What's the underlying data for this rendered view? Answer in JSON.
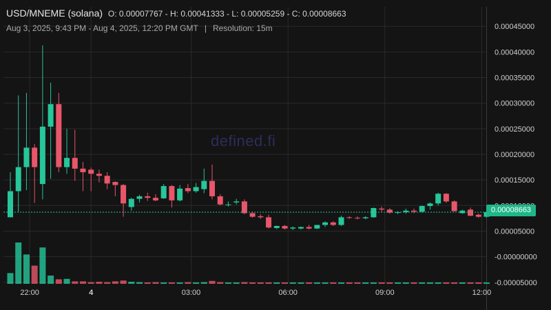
{
  "header": {
    "pair": "USD/MNEME (solana)",
    "ohlc": "O: 0.00007767 - H: 0.00041333 - L: 0.00005259 - C: 0.00008663",
    "range": "Aug 3, 2025, 9:43 PM - Aug 4, 2025, 12:20 PM GMT",
    "separator": "|",
    "resolution": "Resolution: 15m"
  },
  "watermark": "defined.fi",
  "last_price_label": "0.00008663",
  "colors": {
    "up": "#26c79a",
    "down": "#e8566a",
    "background": "#141414",
    "grid": "#2a2a2a",
    "badge": "#1eb688"
  },
  "chart_data": {
    "type": "candlestick",
    "y_ticks": [
      "0.00045000",
      "0.00040000",
      "0.00035000",
      "0.00030000",
      "0.00025000",
      "0.00020000",
      "0.00015000",
      "0.00010000",
      "0.00005000",
      "-0.00000000",
      "-0.00005000"
    ],
    "y_tick_values": [
      0.00045,
      0.0004,
      0.00035,
      0.0003,
      0.00025,
      0.0002,
      0.00015,
      0.0001,
      5e-05,
      0,
      -5e-05
    ],
    "y_range": [
      -5.3e-05,
      0.000488
    ],
    "x_ticks": [
      {
        "label": "22:00",
        "slot": 2.4,
        "bold": false
      },
      {
        "label": "4",
        "slot": 10.0,
        "bold": true
      },
      {
        "label": "03:00",
        "slot": 22.4,
        "bold": false
      },
      {
        "label": "06:00",
        "slot": 34.4,
        "bold": false
      },
      {
        "label": "09:00",
        "slot": 46.4,
        "bold": false
      },
      {
        "label": "12:00",
        "slot": 58.4,
        "bold": false
      }
    ],
    "candles": [
      {
        "o": 7.7e-05,
        "h": 0.000165,
        "l": 7.7e-05,
        "c": 0.000128
      },
      {
        "o": 0.000128,
        "h": 0.000315,
        "l": 8.8e-05,
        "c": 0.000175
      },
      {
        "o": 0.000175,
        "h": 0.00032,
        "l": 0.00013,
        "c": 0.000213
      },
      {
        "o": 0.000213,
        "h": 0.00022,
        "l": 0.000105,
        "c": 0.000175
      },
      {
        "o": 0.000142,
        "h": 0.000413,
        "l": 0.000112,
        "c": 0.000254
      },
      {
        "o": 0.000254,
        "h": 0.00034,
        "l": 0.000152,
        "c": 0.000298
      },
      {
        "o": 0.000298,
        "h": 0.00032,
        "l": 0.000165,
        "c": 0.000175
      },
      {
        "o": 0.000175,
        "h": 0.00025,
        "l": 0.000162,
        "c": 0.000193
      },
      {
        "o": 0.000193,
        "h": 0.000248,
        "l": 0.000148,
        "c": 0.000172
      },
      {
        "o": 0.000172,
        "h": 0.000185,
        "l": 0.000128,
        "c": 0.000165
      },
      {
        "o": 0.00017,
        "h": 0.000174,
        "l": 0.000128,
        "c": 0.000162
      },
      {
        "o": 0.000162,
        "h": 0.00017,
        "l": 0.000145,
        "c": 0.000158
      },
      {
        "o": 0.000158,
        "h": 0.000165,
        "l": 0.000132,
        "c": 0.000143
      },
      {
        "o": 0.000146,
        "h": 0.000147,
        "l": 0.000118,
        "c": 0.00014
      },
      {
        "o": 0.00014,
        "h": 0.000142,
        "l": 7.8e-05,
        "c": 0.000104
      },
      {
        "o": 9.7e-05,
        "h": 0.000115,
        "l": 9e-05,
        "c": 0.000113
      },
      {
        "o": 0.000113,
        "h": 0.000121,
        "l": 0.000106,
        "c": 0.000118
      },
      {
        "o": 0.000118,
        "h": 0.000125,
        "l": 0.000109,
        "c": 0.000115
      },
      {
        "o": 0.000115,
        "h": 0.000122,
        "l": 0.000108,
        "c": 0.00011
      },
      {
        "o": 0.000114,
        "h": 0.000142,
        "l": 0.000113,
        "c": 0.000138
      },
      {
        "o": 0.000138,
        "h": 0.00014,
        "l": 9.6e-05,
        "c": 0.00011
      },
      {
        "o": 0.00011,
        "h": 0.00014,
        "l": 0.000108,
        "c": 0.000133
      },
      {
        "o": 0.000134,
        "h": 0.000142,
        "l": 0.000124,
        "c": 0.000128
      },
      {
        "o": 0.000128,
        "h": 0.000144,
        "l": 0.000125,
        "c": 0.000136
      },
      {
        "o": 0.000132,
        "h": 0.000172,
        "l": 0.000124,
        "c": 0.000148
      },
      {
        "o": 0.000148,
        "h": 0.00018,
        "l": 0.000112,
        "c": 0.000118
      },
      {
        "o": 0.000118,
        "h": 0.000122,
        "l": 0.0001,
        "c": 0.000102
      },
      {
        "o": 0.000102,
        "h": 0.000108,
        "l": 9.8e-05,
        "c": 0.000102
      },
      {
        "o": 0.000106,
        "h": 0.000113,
        "l": 0.000102,
        "c": 0.000108
      },
      {
        "o": 0.000108,
        "h": 0.000112,
        "l": 8.3e-05,
        "c": 8.5e-05
      },
      {
        "o": 8.5e-05,
        "h": 8.8e-05,
        "l": 7.6e-05,
        "c": 7.8e-05
      },
      {
        "o": 7.9e-05,
        "h": 8.3e-05,
        "l": 7.4e-05,
        "c": 7.7e-05
      },
      {
        "o": 7.7e-05,
        "h": 8.2e-05,
        "l": 5.5e-05,
        "c": 5.7e-05
      },
      {
        "o": 5.6e-05,
        "h": 6.1e-05,
        "l": 5.4e-05,
        "c": 6e-05
      },
      {
        "o": 6e-05,
        "h": 6.2e-05,
        "l": 5.3e-05,
        "c": 5.5e-05
      },
      {
        "o": 5.5e-05,
        "h": 5.9e-05,
        "l": 5.2e-05,
        "c": 5.7e-05
      },
      {
        "o": 5.5e-05,
        "h": 5.9e-05,
        "l": 5.3e-05,
        "c": 5.8e-05
      },
      {
        "o": 5.8e-05,
        "h": 6.2e-05,
        "l": 5.3e-05,
        "c": 5.5e-05
      },
      {
        "o": 5.5e-05,
        "h": 6.2e-05,
        "l": 5.4e-05,
        "c": 6.2e-05
      },
      {
        "o": 6.2e-05,
        "h": 6.9e-05,
        "l": 5.8e-05,
        "c": 6.7e-05
      },
      {
        "o": 6.7e-05,
        "h": 6.9e-05,
        "l": 6e-05,
        "c": 6.2e-05
      },
      {
        "o": 6.2e-05,
        "h": 8e-05,
        "l": 6e-05,
        "c": 7.7e-05
      },
      {
        "o": 7.7e-05,
        "h": 7.9e-05,
        "l": 7.4e-05,
        "c": 7.6e-05
      },
      {
        "o": 7.6e-05,
        "h": 7.9e-05,
        "l": 7.3e-05,
        "c": 7.5e-05
      },
      {
        "o": 7.5e-05,
        "h": 7.9e-05,
        "l": 7.3e-05,
        "c": 7.7e-05
      },
      {
        "o": 7.7e-05,
        "h": 9.6e-05,
        "l": 7.6e-05,
        "c": 9.5e-05
      },
      {
        "o": 9.4e-05,
        "h": 9.8e-05,
        "l": 8.8e-05,
        "c": 9.2e-05
      },
      {
        "o": 9.2e-05,
        "h": 9.5e-05,
        "l": 8.4e-05,
        "c": 8.6e-05
      },
      {
        "o": 8.6e-05,
        "h": 8.9e-05,
        "l": 8.3e-05,
        "c": 8.7e-05
      },
      {
        "o": 8.7e-05,
        "h": 9.4e-05,
        "l": 8.4e-05,
        "c": 9e-05
      },
      {
        "o": 9e-05,
        "h": 9.4e-05,
        "l": 8.5e-05,
        "c": 8.8e-05
      },
      {
        "o": 8.8e-05,
        "h": 0.0001,
        "l": 8.6e-05,
        "c": 9.9e-05
      },
      {
        "o": 9.9e-05,
        "h": 0.000106,
        "l": 9.2e-05,
        "c": 0.000104
      },
      {
        "o": 0.000104,
        "h": 0.000125,
        "l": 0.0001,
        "c": 0.000123
      },
      {
        "o": 0.000123,
        "h": 0.000124,
        "l": 0.000105,
        "c": 0.000108
      },
      {
        "o": 0.000108,
        "h": 0.00011,
        "l": 8.8e-05,
        "c": 8.9e-05
      },
      {
        "o": 8.5e-05,
        "h": 9.2e-05,
        "l": 8.4e-05,
        "c": 9e-05
      },
      {
        "o": 9.2e-05,
        "h": 9.6e-05,
        "l": 7.9e-05,
        "c": 8e-05
      },
      {
        "o": 8.2e-05,
        "h": 8.4e-05,
        "l": 7.6e-05,
        "c": 7.8e-05
      },
      {
        "o": 7.8e-05,
        "h": 9.2e-05,
        "l": 7.6e-05,
        "c": 8.7e-05
      }
    ],
    "volume_relative": [
      0.26,
      1,
      0.71,
      0.44,
      0.88,
      0.2,
      0.11,
      0.12,
      0.06,
      0.06,
      0.04,
      0.05,
      0.04,
      0.06,
      0.08,
      0.05,
      0.04,
      0.03,
      0.04,
      0.03,
      0.03,
      0.03,
      0.04,
      0.03,
      0.04,
      0.07,
      0.04,
      0.03,
      0.03,
      0.04,
      0.03,
      0.03,
      0.03,
      0.02,
      0.02,
      0.02,
      0.02,
      0.02,
      0.02,
      0.02,
      0.02,
      0.02,
      0.02,
      0.02,
      0.02,
      0.03,
      0.03,
      0.02,
      0.02,
      0.02,
      0.02,
      0.02,
      0.02,
      0.03,
      0.02,
      0.02,
      0.02,
      0.02,
      0.02,
      0.02
    ]
  }
}
